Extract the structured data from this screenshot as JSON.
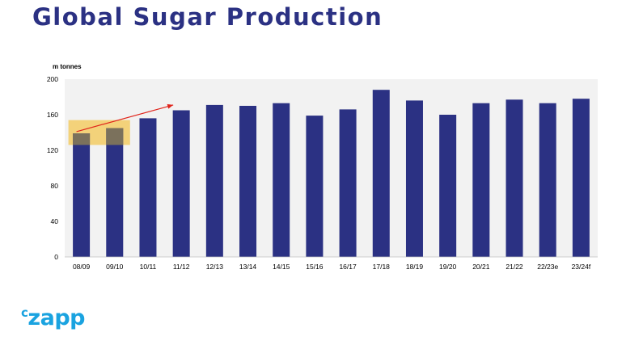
{
  "page": {
    "title": "Global Sugar Production",
    "logo": {
      "prefix": "c",
      "rest": "zapp"
    }
  },
  "colors": {
    "title": "#2b3183",
    "bar": "#2b3183",
    "plot_bg": "#f2f2f2",
    "highlight": "#f3d27a",
    "arrow": "#e0241b",
    "logo": "#1aa3e0"
  },
  "chart_data": {
    "type": "bar",
    "ylabel": "m tonnes",
    "ylim": [
      0,
      200
    ],
    "yticks": [
      0,
      40,
      80,
      120,
      160,
      200
    ],
    "categories": [
      "08/09",
      "09/10",
      "10/11",
      "11/12",
      "12/13",
      "13/14",
      "14/15",
      "15/16",
      "16/17",
      "17/18",
      "18/19",
      "19/20",
      "20/21",
      "21/22",
      "22/23e",
      "23/24f"
    ],
    "values": [
      139,
      145,
      156,
      165,
      171,
      170,
      173,
      159,
      166,
      188,
      176,
      160,
      173,
      177,
      173,
      178
    ],
    "highlight_categories": [
      "08/09",
      "09/10"
    ],
    "highlight_range": [
      126,
      154
    ],
    "arrow_annotation": {
      "from": [
        "08/09",
        141
      ],
      "to": [
        "11/12",
        171
      ]
    },
    "grid": false
  }
}
